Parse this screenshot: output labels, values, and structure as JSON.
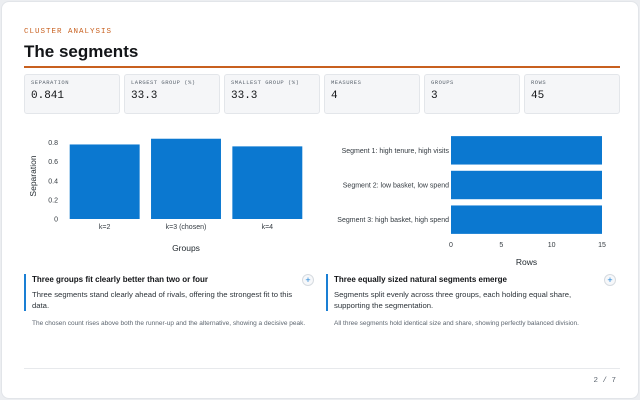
{
  "header": {
    "eyebrow": "CLUSTER ANALYSIS",
    "title": "The segments"
  },
  "kpis": [
    {
      "label": "SEPARATION",
      "value": "0.841"
    },
    {
      "label": "LARGEST GROUP (%)",
      "value": "33.3"
    },
    {
      "label": "SMALLEST GROUP (%)",
      "value": "33.3"
    },
    {
      "label": "MEASURES",
      "value": "4"
    },
    {
      "label": "GROUPS",
      "value": "3"
    },
    {
      "label": "ROWS",
      "value": "45"
    }
  ],
  "chart_data": [
    {
      "type": "bar",
      "orientation": "vertical",
      "categories": [
        "k=2",
        "k=3 (chosen)",
        "k=4"
      ],
      "values": [
        0.78,
        0.84,
        0.76
      ],
      "xlabel": "Groups",
      "ylabel": "Separation",
      "ylim": [
        0,
        0.9
      ],
      "yticks": [
        0,
        0.2,
        0.4,
        0.6,
        0.8
      ],
      "color": "#0b78d0",
      "grid": false
    },
    {
      "type": "bar",
      "orientation": "horizontal",
      "categories": [
        "Segment 1: high tenure, high visits",
        "Segment 2: low basket, low spend",
        "Segment 3: high basket, high spend"
      ],
      "values": [
        15,
        15,
        15
      ],
      "xlabel": "Rows",
      "ylabel": "",
      "xlim": [
        0,
        15
      ],
      "xticks": [
        0,
        5,
        10,
        15
      ],
      "color": "#0b78d0",
      "grid": false
    }
  ],
  "insights": [
    {
      "headline": "Three groups fit clearly better than two or four",
      "body": "Three segments stand clearly ahead of rivals, offering the strongest fit to this data.",
      "note": "The chosen count rises above both the runner-up and the alternative, showing a decisive peak.",
      "action": "+"
    },
    {
      "headline": "Three equally sized natural segments emerge",
      "body": "Segments split evenly across three groups, each holding equal share, supporting the segmentation.",
      "note": "All three segments hold identical size and share, showing perfectly balanced division.",
      "action": "+"
    }
  ],
  "footer": {
    "page": "2 / 7"
  }
}
